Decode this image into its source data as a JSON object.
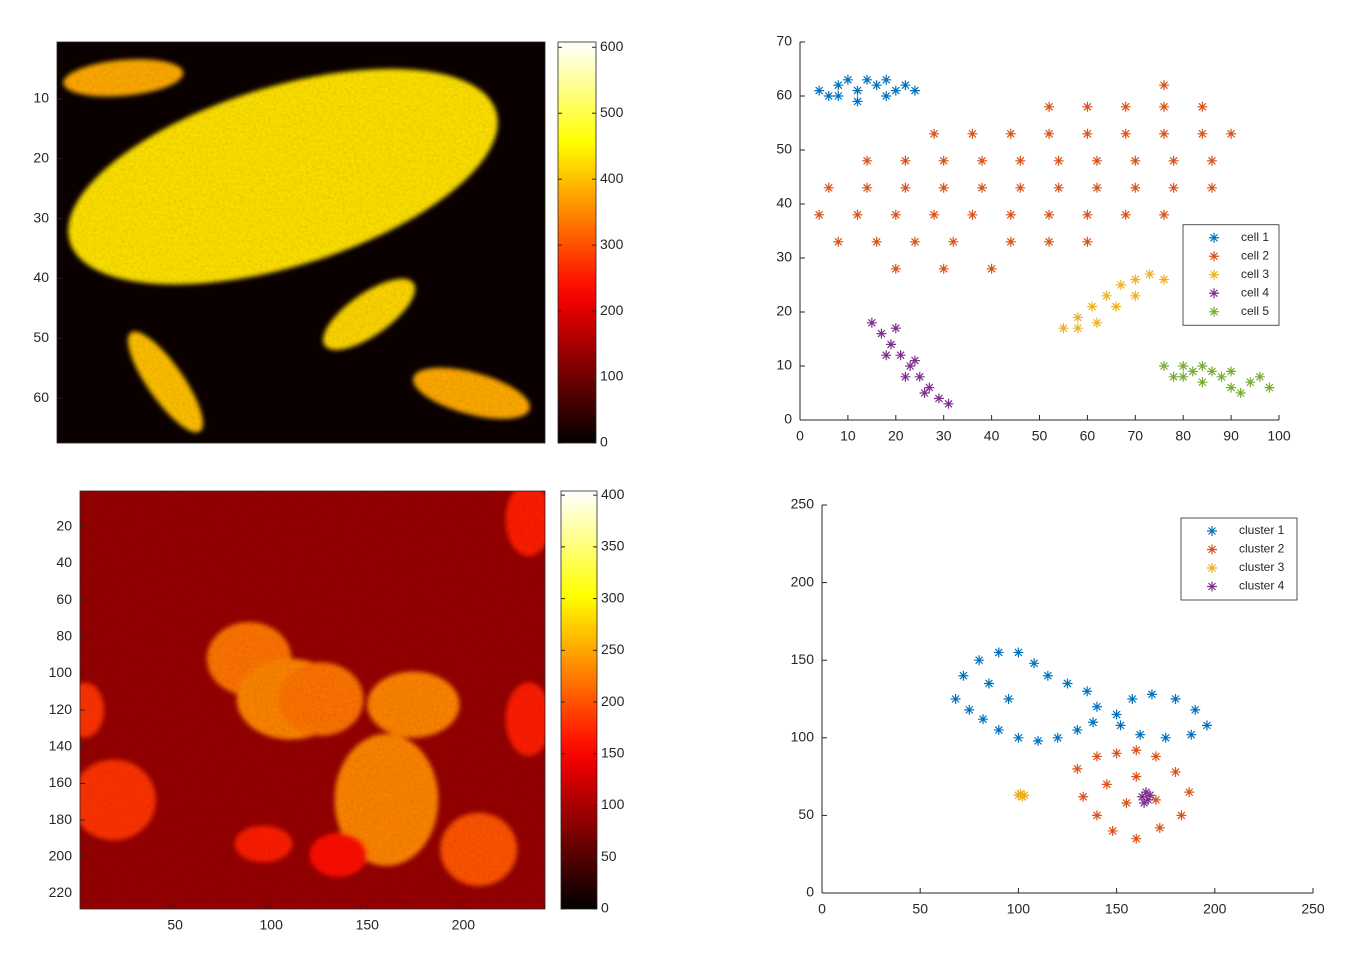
{
  "chart_data": [
    {
      "type": "heatmap",
      "colormap": "hot",
      "y_reversed": true,
      "box": true,
      "xlim": [
        0.5,
        81.5
      ],
      "ylim": [
        0.5,
        67.5
      ],
      "yticks": [
        10,
        20,
        30,
        40,
        50,
        60
      ],
      "clim": [
        0,
        608
      ],
      "cticks": [
        0,
        100,
        200,
        300,
        400,
        500,
        600
      ],
      "background": 10,
      "regions": [
        {
          "x": 38,
          "y": 23,
          "rx": 37,
          "ry": 15,
          "angle": -17,
          "value": 430
        },
        {
          "x": 11.5,
          "y": 6.5,
          "rx": 10,
          "ry": 3,
          "angle": -5,
          "value": 380
        },
        {
          "x": 52.3,
          "y": 46,
          "rx": 9,
          "ry": 3.5,
          "angle": -35,
          "value": 420
        },
        {
          "x": 18.5,
          "y": 57.3,
          "rx": 10,
          "ry": 3,
          "angle": 55,
          "value": 400
        },
        {
          "x": 69.3,
          "y": 59.2,
          "rx": 10,
          "ry": 3.5,
          "angle": 15,
          "value": 380
        }
      ]
    },
    {
      "type": "scatter",
      "box": false,
      "legend": "east",
      "xlim": [
        0,
        100
      ],
      "ylim": [
        0,
        70
      ],
      "xticks": [
        0,
        10,
        20,
        30,
        40,
        50,
        60,
        70,
        80,
        90,
        100
      ],
      "yticks": [
        0,
        10,
        20,
        30,
        40,
        50,
        60,
        70
      ],
      "series": [
        {
          "name": "cell 1",
          "color": "#0072bd",
          "x": [
            4,
            6,
            8,
            10,
            12,
            14,
            16,
            18,
            20,
            22,
            24,
            12,
            18,
            8
          ],
          "y": [
            61,
            60,
            62,
            63,
            61,
            63,
            62,
            63,
            61,
            62,
            61,
            59,
            60,
            60
          ]
        },
        {
          "name": "cell 2",
          "color": "#d95319",
          "x": [
            20,
            30,
            40,
            8,
            16,
            24,
            32,
            44,
            52,
            60,
            4,
            12,
            20,
            28,
            36,
            44,
            52,
            60,
            68,
            76,
            6,
            14,
            22,
            30,
            38,
            46,
            54,
            62,
            70,
            78,
            86,
            14,
            22,
            30,
            38,
            46,
            54,
            62,
            70,
            78,
            86,
            28,
            36,
            44,
            52,
            60,
            68,
            76,
            84,
            90,
            52,
            60,
            68,
            76,
            84,
            76
          ],
          "y": [
            28,
            28,
            28,
            33,
            33,
            33,
            33,
            33,
            33,
            33,
            38,
            38,
            38,
            38,
            38,
            38,
            38,
            38,
            38,
            38,
            43,
            43,
            43,
            43,
            43,
            43,
            43,
            43,
            43,
            43,
            43,
            48,
            48,
            48,
            48,
            48,
            48,
            48,
            48,
            48,
            48,
            53,
            53,
            53,
            53,
            53,
            53,
            53,
            53,
            53,
            58,
            58,
            58,
            58,
            58,
            62
          ]
        },
        {
          "name": "cell 3",
          "color": "#edb120",
          "x": [
            55,
            58,
            61,
            64,
            67,
            70,
            73,
            76,
            62,
            66,
            70,
            58
          ],
          "y": [
            17,
            19,
            21,
            23,
            25,
            26,
            27,
            26,
            18,
            21,
            23,
            17
          ]
        },
        {
          "name": "cell 4",
          "color": "#7e2f8e",
          "x": [
            15,
            17,
            19,
            21,
            23,
            25,
            27,
            29,
            31,
            18,
            22,
            26,
            20,
            24
          ],
          "y": [
            18,
            16,
            14,
            12,
            10,
            8,
            6,
            4,
            3,
            12,
            8,
            5,
            17,
            11
          ]
        },
        {
          "name": "cell 5",
          "color": "#77ac30",
          "x": [
            76,
            78,
            80,
            82,
            84,
            86,
            88,
            90,
            92,
            94,
            96,
            98,
            84,
            90,
            80
          ],
          "y": [
            10,
            8,
            10,
            9,
            7,
            9,
            8,
            6,
            5,
            7,
            8,
            6,
            10,
            9,
            8
          ]
        }
      ]
    },
    {
      "type": "heatmap",
      "colormap": "hot",
      "y_reversed": true,
      "box": true,
      "xlim": [
        0.5,
        242.5
      ],
      "ylim": [
        0.5,
        228.5
      ],
      "xticks": [
        50,
        100,
        150,
        200
      ],
      "yticks": [
        20,
        40,
        60,
        80,
        100,
        120,
        140,
        160,
        180,
        200,
        220
      ],
      "clim": [
        0,
        404
      ],
      "cticks": [
        0,
        50,
        100,
        150,
        200,
        250,
        300,
        350,
        400
      ],
      "background": 90,
      "regions": [
        {
          "x": 88.5,
          "y": 92,
          "rx": 22,
          "ry": 20,
          "angle": 0,
          "value": 220
        },
        {
          "x": 110,
          "y": 114,
          "rx": 28,
          "ry": 22,
          "angle": 0,
          "value": 230
        },
        {
          "x": 126,
          "y": 114,
          "rx": 22,
          "ry": 20,
          "angle": 0,
          "value": 220
        },
        {
          "x": 174,
          "y": 117,
          "rx": 24,
          "ry": 18,
          "angle": 0,
          "value": 230
        },
        {
          "x": 160,
          "y": 169,
          "rx": 27,
          "ry": 36,
          "angle": 0,
          "value": 230
        },
        {
          "x": 208,
          "y": 196,
          "rx": 20,
          "ry": 20,
          "angle": 0,
          "value": 200
        },
        {
          "x": 18,
          "y": 169,
          "rx": 22,
          "ry": 22,
          "angle": 0,
          "value": 180
        },
        {
          "x": 234,
          "y": 16,
          "rx": 12,
          "ry": 20,
          "angle": 0,
          "value": 170
        },
        {
          "x": 234,
          "y": 125,
          "rx": 12,
          "ry": 20,
          "angle": 0,
          "value": 170
        },
        {
          "x": 3,
          "y": 120,
          "rx": 10,
          "ry": 15,
          "angle": 0,
          "value": 180
        },
        {
          "x": 96,
          "y": 193,
          "rx": 15,
          "ry": 10,
          "angle": 0,
          "value": 170
        },
        {
          "x": 135,
          "y": 199,
          "rx": 15,
          "ry": 12,
          "angle": 0,
          "value": 160
        }
      ]
    },
    {
      "type": "scatter",
      "box": false,
      "legend": "northeast",
      "xlim": [
        0,
        250
      ],
      "ylim": [
        0,
        250
      ],
      "xticks": [
        0,
        50,
        100,
        150,
        200,
        250
      ],
      "yticks": [
        0,
        50,
        100,
        150,
        200,
        250
      ],
      "series": [
        {
          "name": "cluster 1",
          "color": "#0072bd",
          "x": [
            68,
            72,
            80,
            90,
            100,
            108,
            115,
            125,
            135,
            140,
            138,
            130,
            120,
            110,
            100,
            90,
            82,
            75,
            150,
            158,
            168,
            180,
            190,
            196,
            188,
            175,
            162,
            152,
            95,
            85
          ],
          "y": [
            125,
            140,
            150,
            155,
            155,
            148,
            140,
            135,
            130,
            120,
            110,
            105,
            100,
            98,
            100,
            105,
            112,
            118,
            115,
            125,
            128,
            125,
            118,
            108,
            102,
            100,
            102,
            108,
            125,
            135
          ]
        },
        {
          "name": "cluster 2",
          "color": "#d95319",
          "x": [
            130,
            140,
            150,
            160,
            170,
            180,
            187,
            183,
            172,
            160,
            148,
            140,
            133,
            145,
            155,
            170,
            160
          ],
          "y": [
            80,
            88,
            90,
            92,
            88,
            78,
            65,
            50,
            42,
            35,
            40,
            50,
            62,
            70,
            58,
            60,
            75
          ]
        },
        {
          "name": "cluster 3",
          "color": "#edb120",
          "x": [
            100,
            102,
            101,
            103
          ],
          "y": [
            63,
            62,
            64,
            63
          ]
        },
        {
          "name": "cluster 4",
          "color": "#7e2f8e",
          "x": [
            163,
            165,
            166,
            164,
            167
          ],
          "y": [
            62,
            65,
            60,
            58,
            63
          ]
        }
      ]
    }
  ]
}
